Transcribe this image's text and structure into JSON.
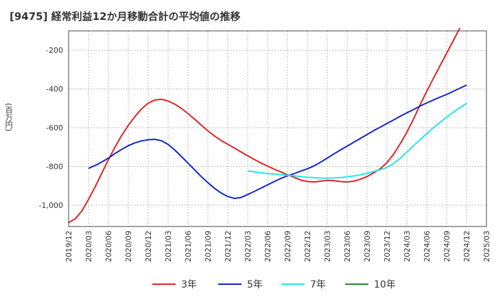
{
  "chart_data": {
    "type": "line",
    "title": "[9475]  経常利益12か月移動合計の平均値の推移",
    "ylabel": "(百万円)",
    "xlabel": "",
    "ylim": [
      -1110,
      -100
    ],
    "yticks": [
      -200,
      -400,
      -600,
      -800,
      -1000
    ],
    "ytick_labels": [
      "-200",
      "-400",
      "-600",
      "-800",
      "-1,000"
    ],
    "xlim": [
      "2019-12",
      "2025-03"
    ],
    "xtick_labels": [
      "2019/12",
      "2020/03",
      "2020/06",
      "2020/09",
      "2020/12",
      "2021/03",
      "2021/06",
      "2021/09",
      "2021/12",
      "2022/03",
      "2022/06",
      "2022/09",
      "2022/12",
      "2023/03",
      "2023/06",
      "2023/09",
      "2023/12",
      "2024/03",
      "2024/06",
      "2024/09",
      "2024/12",
      "2025/03"
    ],
    "grid": true,
    "legend_position": "bottom",
    "series": [
      {
        "name": "3年",
        "color": "#dd2222",
        "points": [
          [
            "2019-12",
            -1090
          ],
          [
            "2020-01",
            -1070
          ],
          [
            "2020-02",
            -1030
          ],
          [
            "2020-03",
            -970
          ],
          [
            "2020-04",
            -905
          ],
          [
            "2020-05",
            -835
          ],
          [
            "2020-06",
            -765
          ],
          [
            "2020-07",
            -700
          ],
          [
            "2020-08",
            -640
          ],
          [
            "2020-09",
            -588
          ],
          [
            "2020-10",
            -542
          ],
          [
            "2020-11",
            -503
          ],
          [
            "2020-12",
            -473
          ],
          [
            "2021-01",
            -457
          ],
          [
            "2021-02",
            -453
          ],
          [
            "2021-03",
            -462
          ],
          [
            "2021-04",
            -478
          ],
          [
            "2021-05",
            -500
          ],
          [
            "2021-06",
            -527
          ],
          [
            "2021-07",
            -556
          ],
          [
            "2021-08",
            -586
          ],
          [
            "2021-09",
            -616
          ],
          [
            "2021-10",
            -643
          ],
          [
            "2021-11",
            -666
          ],
          [
            "2021-12",
            -685
          ],
          [
            "2022-01",
            -705
          ],
          [
            "2022-02",
            -725
          ],
          [
            "2022-03",
            -745
          ],
          [
            "2022-04",
            -764
          ],
          [
            "2022-05",
            -782
          ],
          [
            "2022-06",
            -798
          ],
          [
            "2022-07",
            -814
          ],
          [
            "2022-08",
            -828
          ],
          [
            "2022-09",
            -843
          ],
          [
            "2022-10",
            -856
          ],
          [
            "2022-11",
            -870
          ],
          [
            "2022-12",
            -878
          ],
          [
            "2023-01",
            -880
          ],
          [
            "2023-02",
            -876
          ],
          [
            "2023-03",
            -872
          ],
          [
            "2023-04",
            -873
          ],
          [
            "2023-05",
            -878
          ],
          [
            "2023-06",
            -880
          ],
          [
            "2023-07",
            -876
          ],
          [
            "2023-08",
            -866
          ],
          [
            "2023-09",
            -852
          ],
          [
            "2023-10",
            -833
          ],
          [
            "2023-11",
            -812
          ],
          [
            "2023-12",
            -780
          ],
          [
            "2024-01",
            -737
          ],
          [
            "2024-02",
            -683
          ],
          [
            "2024-03",
            -623
          ],
          [
            "2024-04",
            -555
          ],
          [
            "2024-05",
            -482
          ],
          [
            "2024-06",
            -412
          ],
          [
            "2024-07",
            -345
          ],
          [
            "2024-08",
            -280
          ],
          [
            "2024-09",
            -215
          ],
          [
            "2024-10",
            -150
          ],
          [
            "2024-11",
            -85
          ]
        ]
      },
      {
        "name": "5年",
        "color": "#1122cc",
        "points": [
          [
            "2020-03",
            -810
          ],
          [
            "2020-04",
            -795
          ],
          [
            "2020-05",
            -777
          ],
          [
            "2020-06",
            -757
          ],
          [
            "2020-07",
            -733
          ],
          [
            "2020-08",
            -712
          ],
          [
            "2020-09",
            -693
          ],
          [
            "2020-10",
            -678
          ],
          [
            "2020-11",
            -668
          ],
          [
            "2020-12",
            -662
          ],
          [
            "2021-01",
            -660
          ],
          [
            "2021-02",
            -667
          ],
          [
            "2021-03",
            -686
          ],
          [
            "2021-04",
            -715
          ],
          [
            "2021-05",
            -748
          ],
          [
            "2021-06",
            -783
          ],
          [
            "2021-07",
            -818
          ],
          [
            "2021-08",
            -852
          ],
          [
            "2021-09",
            -884
          ],
          [
            "2021-10",
            -913
          ],
          [
            "2021-11",
            -937
          ],
          [
            "2021-12",
            -955
          ],
          [
            "2022-01",
            -965
          ],
          [
            "2022-02",
            -960
          ],
          [
            "2022-03",
            -945
          ],
          [
            "2022-04",
            -929
          ],
          [
            "2022-05",
            -912
          ],
          [
            "2022-06",
            -895
          ],
          [
            "2022-07",
            -878
          ],
          [
            "2022-08",
            -862
          ],
          [
            "2022-09",
            -848
          ],
          [
            "2022-10",
            -837
          ],
          [
            "2022-11",
            -824
          ],
          [
            "2022-12",
            -812
          ],
          [
            "2023-01",
            -797
          ],
          [
            "2023-02",
            -778
          ],
          [
            "2023-03",
            -757
          ],
          [
            "2023-04",
            -735
          ],
          [
            "2023-05",
            -715
          ],
          [
            "2023-06",
            -695
          ],
          [
            "2023-07",
            -675
          ],
          [
            "2023-08",
            -655
          ],
          [
            "2023-09",
            -635
          ],
          [
            "2023-10",
            -615
          ],
          [
            "2023-11",
            -597
          ],
          [
            "2023-12",
            -578
          ],
          [
            "2024-01",
            -560
          ],
          [
            "2024-02",
            -541
          ],
          [
            "2024-03",
            -523
          ],
          [
            "2024-04",
            -506
          ],
          [
            "2024-05",
            -488
          ],
          [
            "2024-06",
            -472
          ],
          [
            "2024-07",
            -457
          ],
          [
            "2024-08",
            -442
          ],
          [
            "2024-09",
            -428
          ],
          [
            "2024-10",
            -412
          ],
          [
            "2024-11",
            -396
          ],
          [
            "2024-12",
            -380
          ]
        ]
      },
      {
        "name": "7年",
        "color": "#22e6ee",
        "points": [
          [
            "2022-03",
            -823
          ],
          [
            "2022-04",
            -828
          ],
          [
            "2022-05",
            -833
          ],
          [
            "2022-06",
            -836
          ],
          [
            "2022-07",
            -839
          ],
          [
            "2022-08",
            -842
          ],
          [
            "2022-09",
            -845
          ],
          [
            "2022-10",
            -848
          ],
          [
            "2022-11",
            -852
          ],
          [
            "2022-12",
            -856
          ],
          [
            "2023-01",
            -858
          ],
          [
            "2023-02",
            -860
          ],
          [
            "2023-03",
            -860
          ],
          [
            "2023-04",
            -859
          ],
          [
            "2023-05",
            -857
          ],
          [
            "2023-06",
            -853
          ],
          [
            "2023-07",
            -849
          ],
          [
            "2023-08",
            -843
          ],
          [
            "2023-09",
            -835
          ],
          [
            "2023-10",
            -826
          ],
          [
            "2023-11",
            -817
          ],
          [
            "2023-12",
            -805
          ],
          [
            "2024-01",
            -785
          ],
          [
            "2024-02",
            -758
          ],
          [
            "2024-03",
            -726
          ],
          [
            "2024-04",
            -693
          ],
          [
            "2024-05",
            -661
          ],
          [
            "2024-06",
            -630
          ],
          [
            "2024-07",
            -600
          ],
          [
            "2024-08",
            -572
          ],
          [
            "2024-09",
            -545
          ],
          [
            "2024-10",
            -520
          ],
          [
            "2024-11",
            -497
          ],
          [
            "2024-12",
            -474
          ]
        ]
      },
      {
        "name": "10年",
        "color": "#228822",
        "points": []
      }
    ]
  }
}
